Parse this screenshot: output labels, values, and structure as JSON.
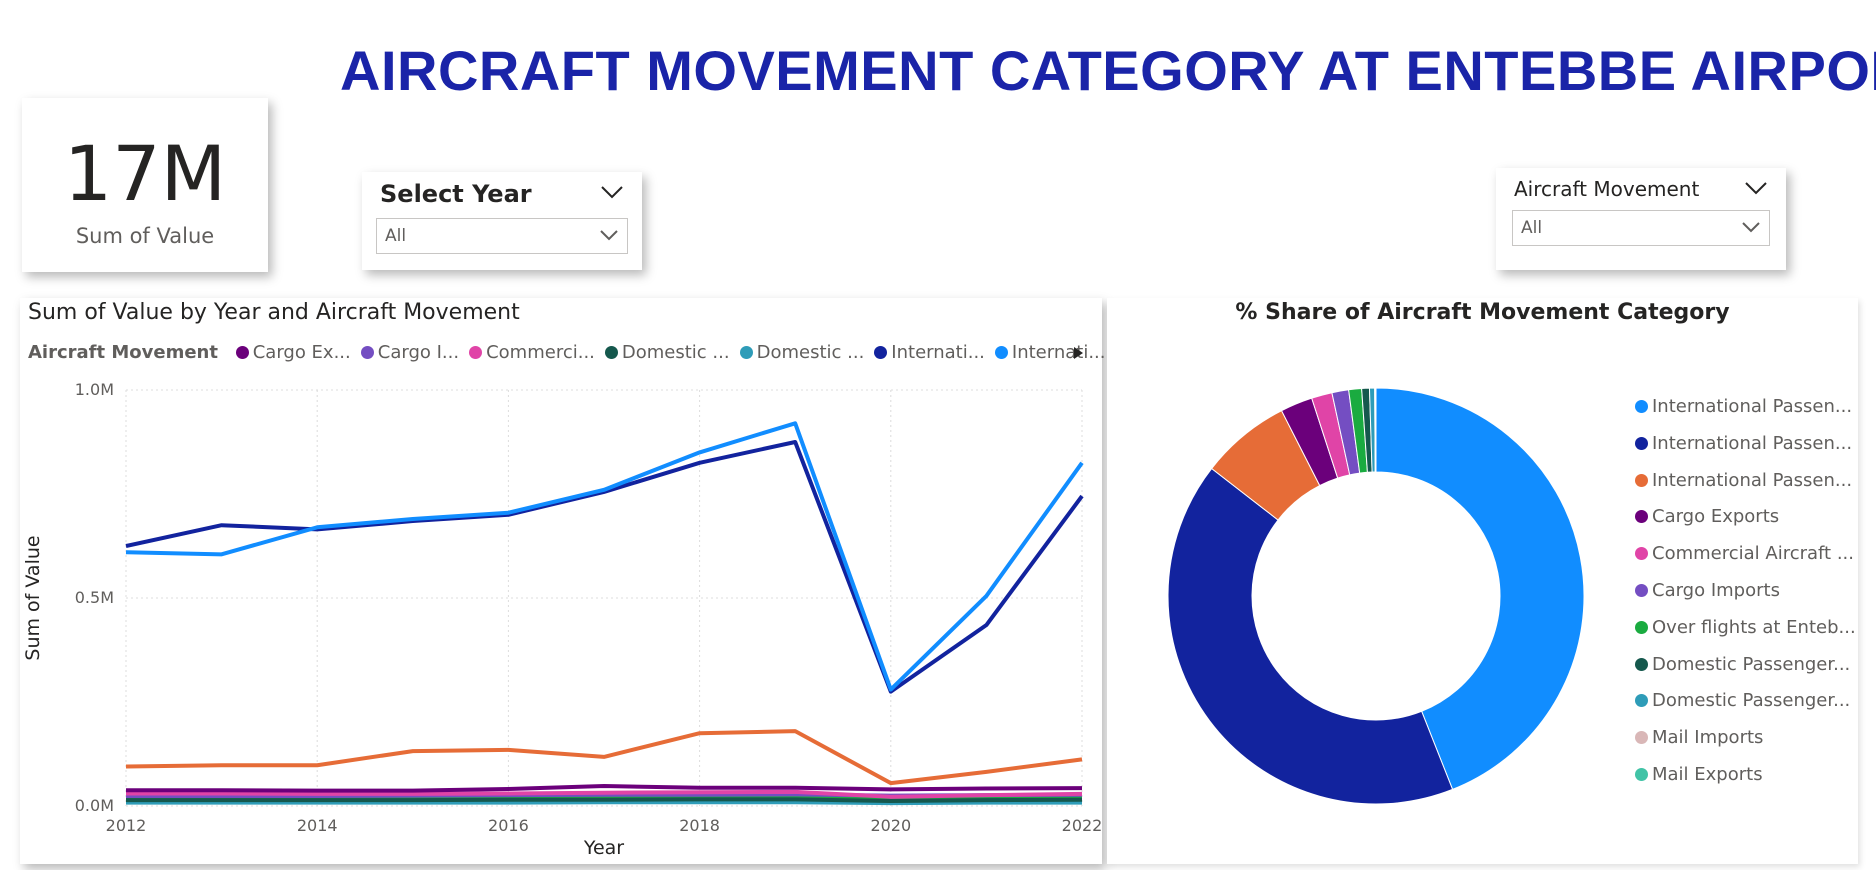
{
  "header": {
    "title": "AIRCRAFT MOVEMENT CATEGORY AT ENTEBBE AIRPORT"
  },
  "kpi": {
    "value": "17M",
    "label": "Sum of Value"
  },
  "year_slicer": {
    "title": "Select Year",
    "value": "All"
  },
  "movement_slicer": {
    "title": "Aircraft Movement",
    "value": "All"
  },
  "colors": {
    "intl_passenger_a": "#118dff",
    "intl_passenger_b": "#12239e",
    "intl_passenger_c": "#e66c37",
    "cargo_exports": "#6b007b",
    "commercial_aircraft": "#e044a7",
    "cargo_imports": "#744ec2",
    "over_flights": "#1aab40",
    "domestic_passenger_a": "#15584d",
    "domestic_passenger_b": "#2e9cb8",
    "mail_imports": "#d9b7b7",
    "mail_exports": "#41c3a6"
  },
  "chart_data": [
    {
      "type": "line",
      "title": "Sum of Value by Year and Aircraft Movement",
      "legend_title": "Aircraft Movement",
      "legend_items": [
        {
          "label": "Cargo Ex...",
          "color": "#6b007b"
        },
        {
          "label": "Cargo I...",
          "color": "#744ec2"
        },
        {
          "label": "Commerci...",
          "color": "#e044a7"
        },
        {
          "label": "Domestic ...",
          "color": "#15584d"
        },
        {
          "label": "Domestic ...",
          "color": "#2e9cb8"
        },
        {
          "label": "Internati...",
          "color": "#12239e"
        },
        {
          "label": "Internati...",
          "color": "#118dff"
        }
      ],
      "xlabel": "Year",
      "ylabel": "Sum of Value",
      "x": [
        2012,
        2013,
        2014,
        2015,
        2016,
        2017,
        2018,
        2019,
        2020,
        2021,
        2022
      ],
      "x_ticks": [
        "2012",
        "2014",
        "2016",
        "2018",
        "2020",
        "2022"
      ],
      "y_ticks": [
        "0.0M",
        "0.5M",
        "1.0M"
      ],
      "ylim": [
        0,
        1000000
      ],
      "grid": true,
      "series": [
        {
          "color": "#118dff",
          "values": [
            610000,
            605000,
            670000,
            690000,
            705000,
            760000,
            850000,
            920000,
            280000,
            505000,
            825000
          ]
        },
        {
          "color": "#12239e",
          "values": [
            625000,
            675000,
            665000,
            685000,
            700000,
            755000,
            825000,
            875000,
            275000,
            435000,
            745000
          ]
        },
        {
          "color": "#e66c37",
          "values": [
            95000,
            98000,
            98000,
            132000,
            135000,
            118000,
            175000,
            180000,
            55000,
            82000,
            112000
          ]
        },
        {
          "color": "#6b007b",
          "values": [
            38000,
            38000,
            37000,
            37000,
            41000,
            48000,
            44000,
            44000,
            40000,
            42000,
            43000
          ]
        },
        {
          "color": "#e044a7",
          "values": [
            30000,
            30000,
            29000,
            29000,
            30000,
            32000,
            33000,
            34000,
            22000,
            26000,
            29000
          ]
        },
        {
          "color": "#744ec2",
          "values": [
            24000,
            24000,
            24000,
            25000,
            26000,
            27000,
            27000,
            28000,
            25000,
            26000,
            27000
          ]
        },
        {
          "color": "#15584d",
          "values": [
            14000,
            14000,
            14000,
            14000,
            15000,
            15000,
            16000,
            16000,
            12000,
            14000,
            15000
          ]
        },
        {
          "color": "#1aab40",
          "values": [
            18000,
            18000,
            18000,
            18000,
            19000,
            19000,
            20000,
            20000,
            16000,
            18000,
            19000
          ]
        },
        {
          "color": "#2e9cb8",
          "values": [
            8000,
            8000,
            8000,
            8000,
            8000,
            9000,
            9000,
            9000,
            7000,
            8000,
            8000
          ]
        }
      ]
    },
    {
      "type": "pie",
      "title": "% Share of Aircraft Movement Category",
      "donut": true,
      "legend_position": "right",
      "slices": [
        {
          "label": "International Passen...",
          "color": "#118dff",
          "value": 44.0
        },
        {
          "label": "International Passen...",
          "color": "#12239e",
          "value": 41.5
        },
        {
          "label": "International Passen...",
          "color": "#e66c37",
          "value": 7.0
        },
        {
          "label": "Cargo Exports",
          "color": "#6b007b",
          "value": 2.5
        },
        {
          "label": "Commercial Aircraft ...",
          "color": "#e044a7",
          "value": 1.6
        },
        {
          "label": "Cargo Imports",
          "color": "#744ec2",
          "value": 1.3
        },
        {
          "label": "Over flights at Enteb...",
          "color": "#1aab40",
          "value": 1.0
        },
        {
          "label": "Domestic Passenger...",
          "color": "#15584d",
          "value": 0.6
        },
        {
          "label": "Domestic Passenger...",
          "color": "#2e9cb8",
          "value": 0.4
        },
        {
          "label": "Mail Imports",
          "color": "#d9b7b7",
          "value": 0.05
        },
        {
          "label": "Mail Exports",
          "color": "#41c3a6",
          "value": 0.05
        }
      ]
    }
  ]
}
